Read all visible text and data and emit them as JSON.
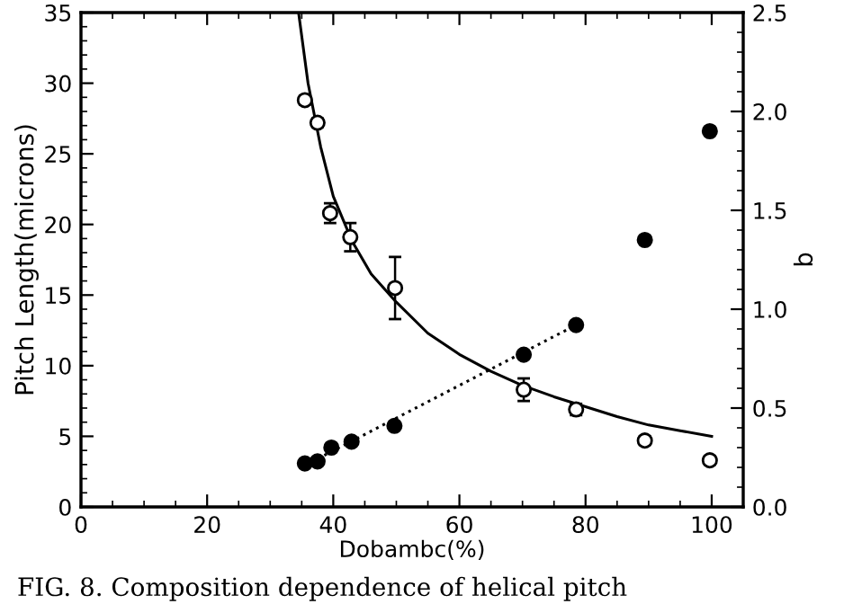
{
  "chart_data": {
    "type": "scatter",
    "xlabel": "Dobambc(%)",
    "ylabel": "Pitch Length(microns)",
    "y2label": "q",
    "xlim": [
      0,
      105
    ],
    "xticks": [
      0,
      20,
      40,
      60,
      80,
      100
    ],
    "ylim": [
      0,
      35
    ],
    "yticks": [
      0,
      5,
      10,
      15,
      20,
      25,
      30,
      35
    ],
    "y2lim": [
      0,
      2.5
    ],
    "y2ticks": [
      {
        "value": 0,
        "label": "0.0"
      },
      {
        "value": 0.5,
        "label": "0.5"
      },
      {
        "value": 1,
        "label": "1.0"
      },
      {
        "value": 1.5,
        "label": "1.5"
      },
      {
        "value": 2,
        "label": "2.0"
      },
      {
        "value": 2.5,
        "label": "2.5"
      }
    ],
    "grid": false,
    "legend": false,
    "series": [
      {
        "marker": "circle",
        "color": "#000000",
        "x": [
          35.5,
          37.5,
          39.5,
          42.7,
          49.8,
          70.2,
          78.5,
          89.4,
          99.7
        ],
        "values": [
          28.8,
          27.2,
          20.8,
          19.1,
          15.5,
          8.3,
          6.9,
          4.7,
          3.3
        ],
        "errors": [
          0.3,
          0.3,
          0.7,
          1,
          2.2,
          0.8,
          0.4,
          0.3,
          0.3
        ]
      },
      {
        "type": "line",
        "line_style": "solid",
        "color": "#000000",
        "x": [
          34.5,
          36,
          38,
          40,
          43,
          46,
          50,
          55,
          60,
          65,
          70,
          75,
          80,
          85,
          90,
          95,
          100
        ],
        "values": [
          35,
          30,
          25.5,
          22,
          18.8,
          16.5,
          14.5,
          12.3,
          10.8,
          9.6,
          8.6,
          7.8,
          7.1,
          6.4,
          5.8,
          5.4,
          5.0
        ]
      },
      {
        "axis": "y2",
        "marker": "circle",
        "color": "#000000",
        "x": [
          35.5,
          37.5,
          39.7,
          42.9,
          49.7,
          70.2,
          78.5,
          89.4,
          99.7
        ],
        "values": [
          0.22,
          0.23,
          0.3,
          0.33,
          0.41,
          0.77,
          0.92,
          1.35,
          1.9
        ]
      },
      {
        "type": "line",
        "axis": "y2",
        "line_style": "dotted",
        "color": "#000000",
        "x": [
          35.5,
          78.5
        ],
        "values": [
          0.21,
          0.92
        ]
      }
    ],
    "annotations": [
      "FIG. 8. Composition dependence of helical pitch"
    ]
  }
}
